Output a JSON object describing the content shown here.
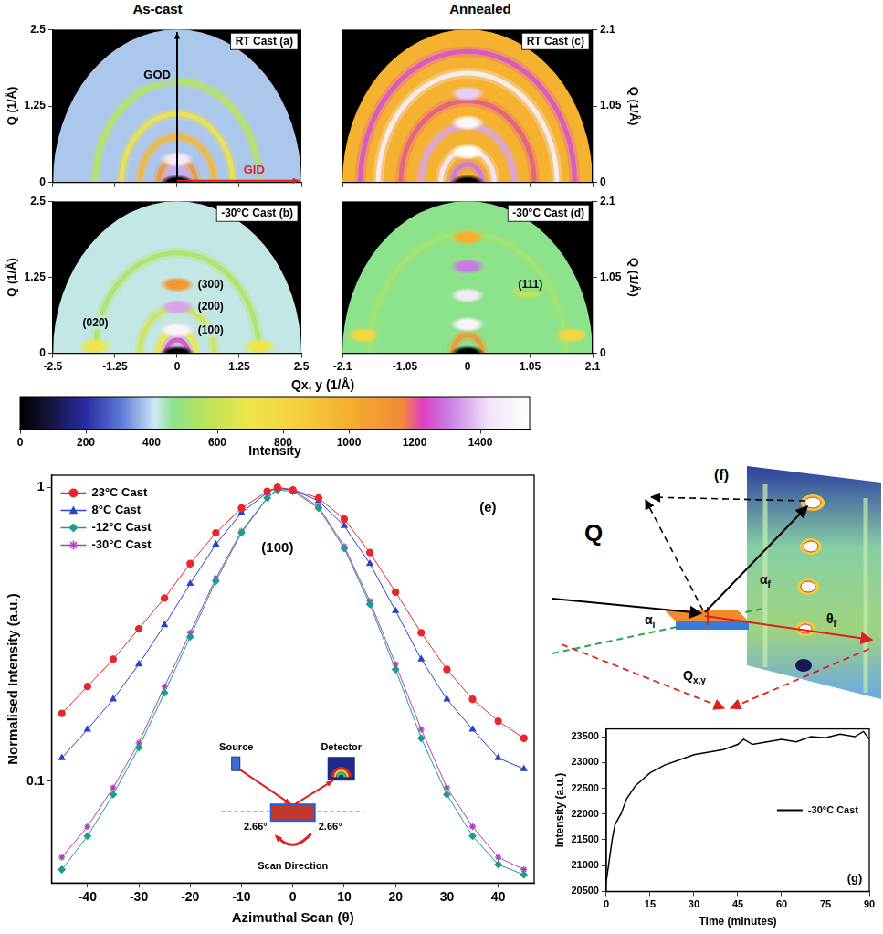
{
  "figure": {
    "y_label": "Q (1/Å)",
    "x_label": "Qx, y (1/Å)",
    "columns": [
      {
        "title": "As-cast",
        "xlim": [
          -2.5,
          2.5
        ],
        "xticks": [
          -2.5,
          -1.25,
          0,
          1.25,
          2.5
        ],
        "ylim": [
          0,
          2.5
        ],
        "yticks": [
          0,
          1.25,
          2.5
        ],
        "images": [
          {
            "title": "RT Cast (a)",
            "background": 380,
            "rings": [
              {
                "q": 0.22,
                "intensity": 1350
              },
              {
                "q": 0.38,
                "intensity": 1100
              },
              {
                "q": 0.75,
                "intensity": 950
              },
              {
                "q": 1.12,
                "intensity": 720
              },
              {
                "q": 1.65,
                "intensity": 560
              }
            ],
            "spots": [
              {
                "qxy": 0,
                "q": 0.38,
                "intensity": 1450
              },
              {
                "qxy": 0,
                "q": 0,
                "intensity": 0
              }
            ],
            "arrows": [
              {
                "text": "GOD",
                "color": "#000000",
                "axis": "y"
              },
              {
                "text": "GID",
                "color": "#e0201a",
                "axis": "x"
              }
            ]
          },
          {
            "title": "-30°C Cast (b)",
            "background": 420,
            "rings": [
              {
                "q": 0.22,
                "intensity": 1250
              },
              {
                "q": 0.38,
                "intensity": 700
              },
              {
                "q": 0.75,
                "intensity": 620
              },
              {
                "q": 1.65,
                "intensity": 540
              }
            ],
            "spots": [
              {
                "qxy": 0,
                "q": 0.38,
                "intensity": 1500
              },
              {
                "qxy": 0,
                "q": 0.76,
                "intensity": 1350
              },
              {
                "qxy": 0,
                "q": 1.13,
                "intensity": 1100
              },
              {
                "qxy": -1.65,
                "q": 0.12,
                "intensity": 700
              },
              {
                "qxy": 1.65,
                "q": 0.12,
                "intensity": 700
              },
              {
                "qxy": 0,
                "q": 0,
                "intensity": 0
              }
            ],
            "annotations": [
              {
                "text": "(300)",
                "qxy": 0.42,
                "q": 1.13
              },
              {
                "text": "(200)",
                "qxy": 0.42,
                "q": 0.76
              },
              {
                "text": "(100)",
                "qxy": 0.42,
                "q": 0.38
              },
              {
                "text": "(020)",
                "qxy": -1.9,
                "q": 0.5
              }
            ]
          }
        ]
      },
      {
        "title": "Annealed",
        "xlim": [
          -2.1,
          2.1
        ],
        "xticks": [
          -2.1,
          -1.05,
          0,
          1.05,
          2.1
        ],
        "ylim": [
          0,
          2.1
        ],
        "yticks": [
          0,
          1.05,
          2.1
        ],
        "images": [
          {
            "title": "RT Cast (c)",
            "background": 980,
            "rings": [
              {
                "q": 0.25,
                "intensity": 1300
              },
              {
                "q": 0.45,
                "intensity": 1450
              },
              {
                "q": 0.78,
                "intensity": 1350
              },
              {
                "q": 1.12,
                "intensity": 1200
              },
              {
                "q": 1.5,
                "intensity": 1480
              },
              {
                "q": 1.8,
                "intensity": 1250
              }
            ],
            "spots": [
              {
                "qxy": 0,
                "q": 0.42,
                "intensity": 1550
              },
              {
                "qxy": 0,
                "q": 0.82,
                "intensity": 1500
              },
              {
                "qxy": 0,
                "q": 1.22,
                "intensity": 1400
              },
              {
                "qxy": 0,
                "q": 0,
                "intensity": 0
              }
            ]
          },
          {
            "title": "-30°C Cast (d)",
            "background": 470,
            "rings": [
              {
                "q": 0.25,
                "intensity": 1100
              },
              {
                "q": 1.65,
                "intensity": 520
              }
            ],
            "spots": [
              {
                "qxy": 0,
                "q": 0.4,
                "intensity": 1500
              },
              {
                "qxy": 0,
                "q": 0.8,
                "intensity": 1450
              },
              {
                "qxy": 0,
                "q": 1.2,
                "intensity": 1300
              },
              {
                "qxy": 0,
                "q": 1.6,
                "intensity": 1000
              },
              {
                "qxy": -1.75,
                "q": 0.25,
                "intensity": 800
              },
              {
                "qxy": 1.75,
                "q": 0.25,
                "intensity": 800
              },
              {
                "qxy": 1.0,
                "q": 0.85,
                "intensity": 580
              },
              {
                "qxy": 0,
                "q": 0,
                "intensity": 0
              }
            ],
            "annotations": [
              {
                "text": "(111)",
                "qxy": 0.85,
                "q": 0.95
              }
            ]
          }
        ]
      }
    ],
    "colorbar": {
      "title": "Intensity",
      "range": [
        0,
        1550
      ],
      "ticks": [
        0,
        200,
        400,
        600,
        800,
        1000,
        1200,
        1400
      ]
    },
    "inset_e": {
      "source": "Source",
      "detector": "Detector",
      "angles": [
        "2.66°",
        "2.66°"
      ],
      "scan": "Scan Direction"
    },
    "diagram_f": {
      "label": "(f)",
      "vector": "Q",
      "angles": [
        "αi",
        "αf",
        "θf"
      ],
      "plane": "Qx,y"
    }
  },
  "chart_data": [
    {
      "type": "line",
      "x_label": "Azimuthal Scan (θ)",
      "y_label": "Normalised Intensity (a.u.)",
      "log": "y",
      "grid": false,
      "legend": "upper left",
      "xlim": [
        -47,
        47
      ],
      "xticks": [
        -40,
        -30,
        -20,
        -10,
        0,
        10,
        20,
        30,
        40
      ],
      "ylim": [
        0.045,
        1.1
      ],
      "yticks": [
        0.1,
        1
      ],
      "x": [
        -45,
        -40,
        -35,
        -30,
        -25,
        -20,
        -15,
        -10,
        -5,
        -3,
        0,
        5,
        10,
        15,
        20,
        25,
        30,
        35,
        40,
        45
      ],
      "series": [
        {
          "name": "23°C Cast",
          "color": "#e8262b",
          "marker": "circle",
          "line_style": "solid",
          "values": [
            0.17,
            0.21,
            0.26,
            0.33,
            0.42,
            0.55,
            0.7,
            0.85,
            0.97,
            1.0,
            0.98,
            0.92,
            0.78,
            0.6,
            0.44,
            0.32,
            0.24,
            0.19,
            0.16,
            0.14
          ]
        },
        {
          "name": "8°C Cast",
          "color": "#2744c9",
          "marker": "triangle",
          "line_style": "solid",
          "values": [
            0.12,
            0.15,
            0.19,
            0.25,
            0.34,
            0.47,
            0.64,
            0.82,
            0.96,
            1.0,
            0.98,
            0.9,
            0.74,
            0.55,
            0.38,
            0.26,
            0.19,
            0.15,
            0.12,
            0.11
          ]
        },
        {
          "name": "-12°C Cast",
          "color": "#1a9e8a",
          "marker": "diamond",
          "line_style": "solid",
          "values": [
            0.05,
            0.065,
            0.09,
            0.13,
            0.2,
            0.31,
            0.48,
            0.7,
            0.92,
            0.98,
            0.97,
            0.85,
            0.62,
            0.4,
            0.24,
            0.14,
            0.09,
            0.065,
            0.052,
            0.048
          ]
        },
        {
          "name": "-30°C Cast",
          "color": "#b03cbe",
          "marker": "star",
          "line_style": "solid",
          "values": [
            0.055,
            0.07,
            0.095,
            0.135,
            0.21,
            0.32,
            0.49,
            0.71,
            0.92,
            0.99,
            0.98,
            0.86,
            0.63,
            0.41,
            0.25,
            0.15,
            0.095,
            0.07,
            0.055,
            0.05
          ]
        }
      ],
      "annotations": [
        {
          "text": "(e)",
          "x": 38,
          "y": 0.85
        },
        {
          "text": "(100)",
          "x": -3,
          "y": 0.62
        }
      ]
    },
    {
      "type": "line",
      "x_label": "Time (minutes)",
      "y_label": "Intensity (a.u.)",
      "grid": false,
      "legend": "center right",
      "xlim": [
        0,
        90
      ],
      "xticks": [
        0,
        15,
        30,
        45,
        60,
        75,
        90
      ],
      "ylim": [
        20500,
        23650
      ],
      "yticks": [
        20500,
        21000,
        21500,
        22000,
        22500,
        23000,
        23500
      ],
      "x": [
        0,
        1,
        2,
        3,
        5,
        7,
        10,
        13,
        15,
        20,
        25,
        30,
        35,
        40,
        45,
        47,
        50,
        55,
        60,
        65,
        70,
        75,
        80,
        85,
        88,
        90
      ],
      "series": [
        {
          "name": "-30°C Cast",
          "color": "#000000",
          "marker": "none",
          "line_style": "solid",
          "values": [
            20700,
            21100,
            21500,
            21800,
            22000,
            22300,
            22550,
            22700,
            22800,
            22950,
            23050,
            23150,
            23200,
            23250,
            23350,
            23450,
            23350,
            23400,
            23450,
            23400,
            23500,
            23480,
            23550,
            23500,
            23600,
            23450
          ]
        }
      ],
      "annotations": [
        {
          "text": "(g)",
          "x": 85,
          "y": 20750
        }
      ]
    }
  ]
}
